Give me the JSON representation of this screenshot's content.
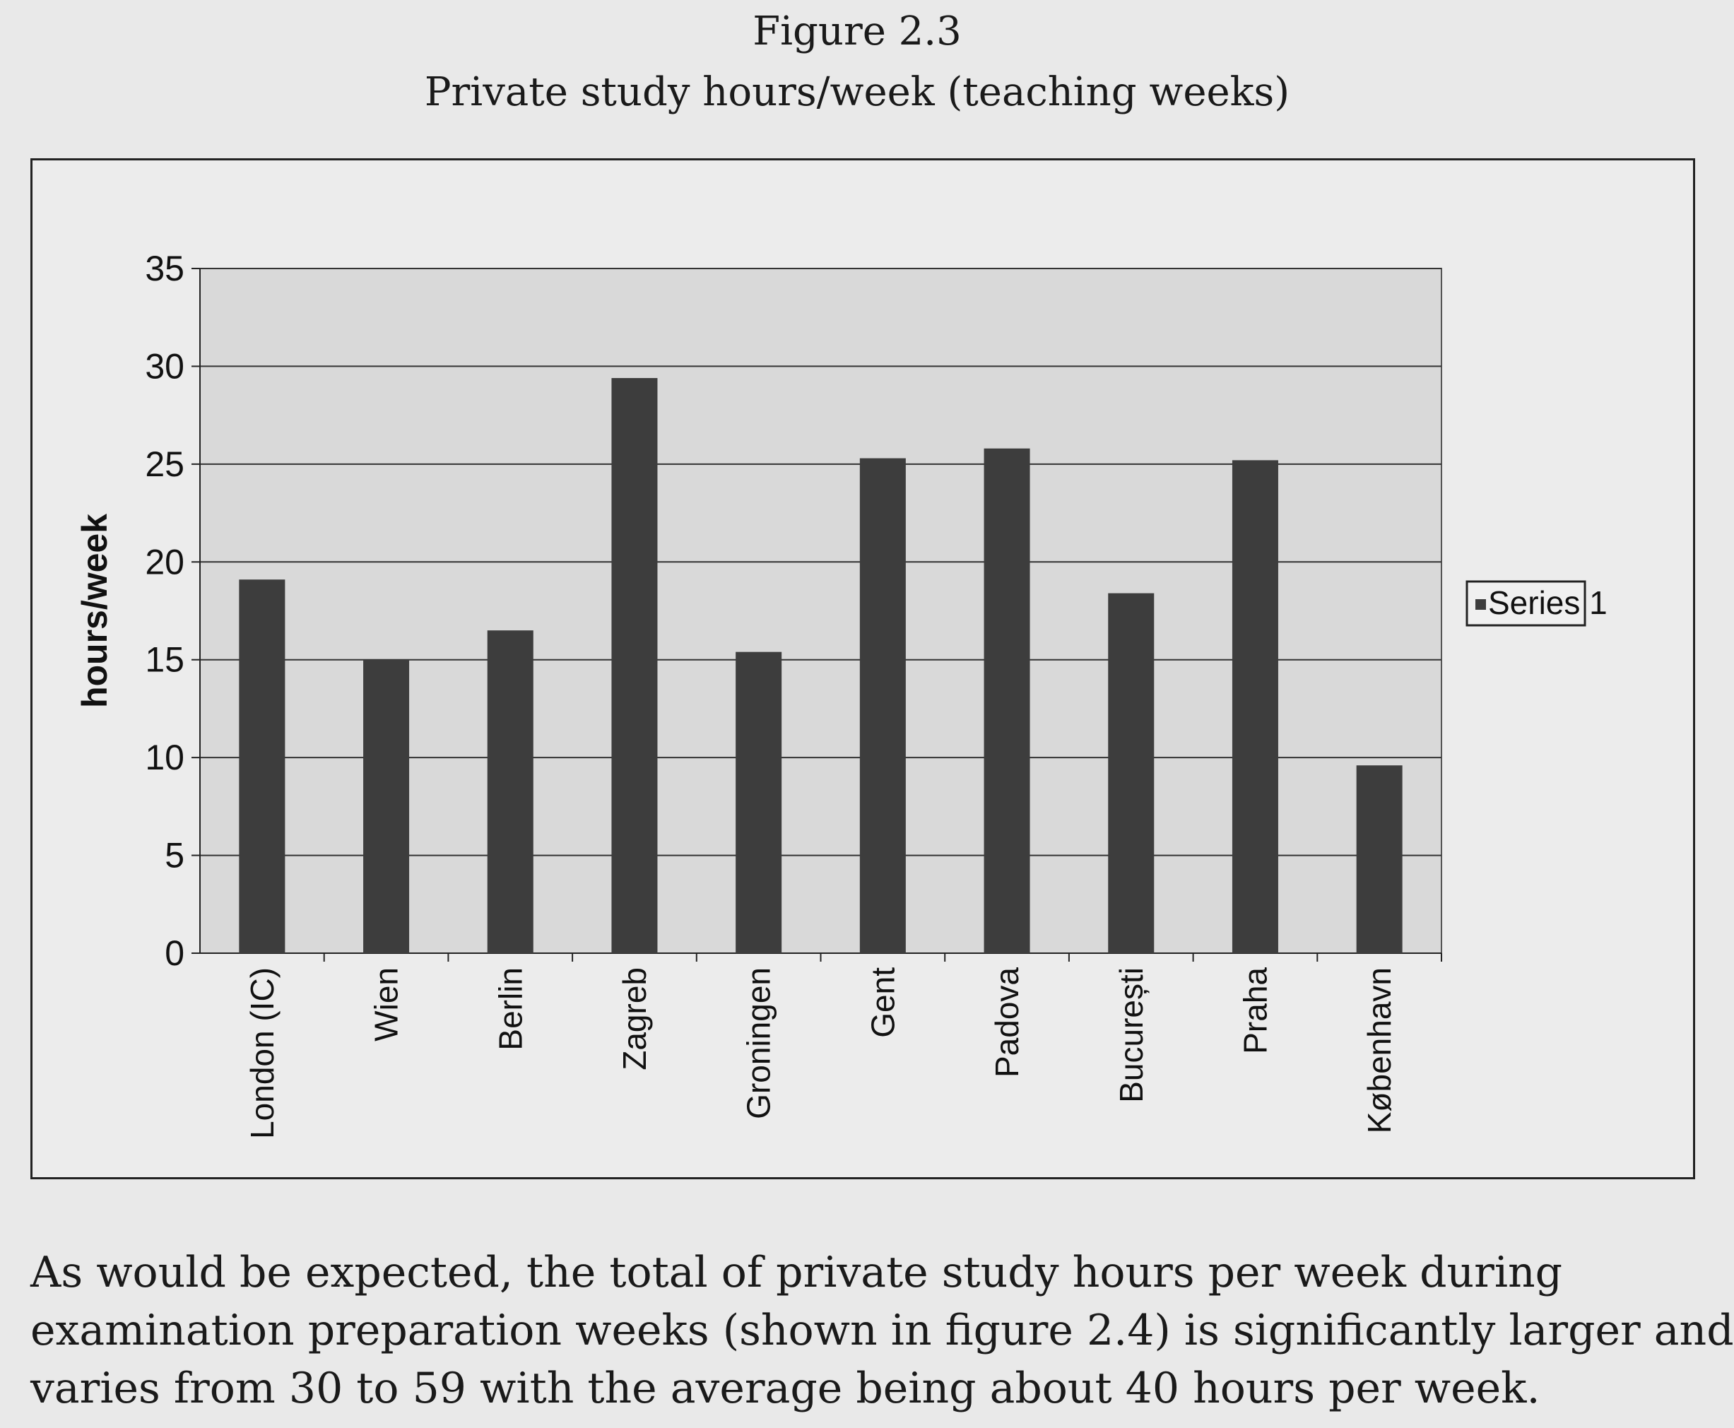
{
  "figure_label": "Figure 2.3",
  "chart_data": {
    "type": "bar",
    "title": "Private study hours/week (teaching weeks)",
    "xlabel": "",
    "ylabel": "hours/week",
    "ylim": [
      0,
      35
    ],
    "yticks": [
      0,
      5,
      10,
      15,
      20,
      25,
      30,
      35
    ],
    "grid": true,
    "legend_position": "right",
    "categories": [
      "London (IC)",
      "Wien",
      "Berlin",
      "Zagreb",
      "Groningen",
      "Gent",
      "Padova",
      "București",
      "Praha",
      "København"
    ],
    "series": [
      {
        "name": "Series 1",
        "values": [
          19.1,
          15.0,
          16.5,
          29.4,
          15.4,
          25.3,
          25.8,
          18.4,
          25.2,
          9.6
        ]
      }
    ],
    "colors": {
      "bar": "#3d3d3d",
      "plot_bg": "#d9d9d9",
      "grid": "#333333"
    }
  },
  "caption_lines": [
    "As would be expected, the total of private study hours per week during",
    "examination preparation weeks (shown in figure 2.4) is significantly larger and",
    "varies from 30 to 59 with the average being about 40 hours per week."
  ]
}
